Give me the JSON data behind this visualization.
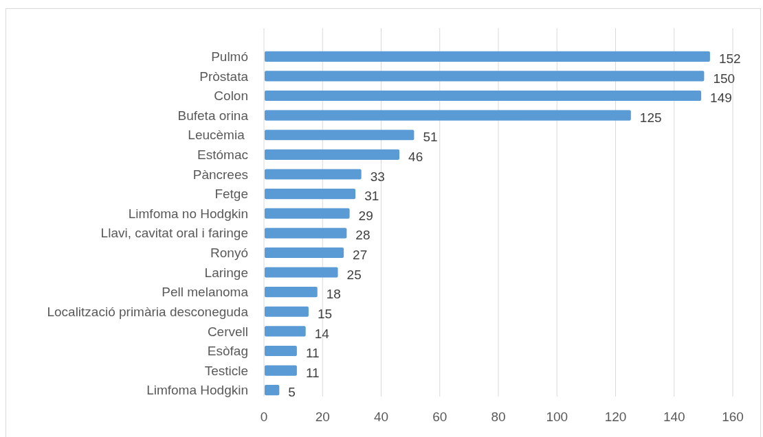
{
  "chart_data": {
    "type": "bar",
    "orientation": "horizontal",
    "categories": [
      "Pulmó",
      "Pròstata",
      "Colon",
      "Bufeta orina",
      "Leucèmia ",
      "Estómac",
      "Pàncrees",
      "Fetge",
      "Limfoma no Hodgkin",
      "Llavi, cavitat oral i faringe",
      "Ronyó",
      "Laringe",
      "Pell melanoma",
      "Localització primària desconeguda",
      "Cervell",
      "Esòfag",
      "Testicle",
      "Limfoma Hodgkin"
    ],
    "values": [
      152,
      150,
      149,
      125,
      51,
      46,
      33,
      31,
      29,
      28,
      27,
      25,
      18,
      15,
      14,
      11,
      11,
      5
    ],
    "color": "#5b9bd5",
    "xlim": [
      0,
      160
    ],
    "xticks": [
      0,
      20,
      40,
      60,
      80,
      100,
      120,
      140,
      160
    ],
    "grid": "x",
    "data_labels": true
  }
}
